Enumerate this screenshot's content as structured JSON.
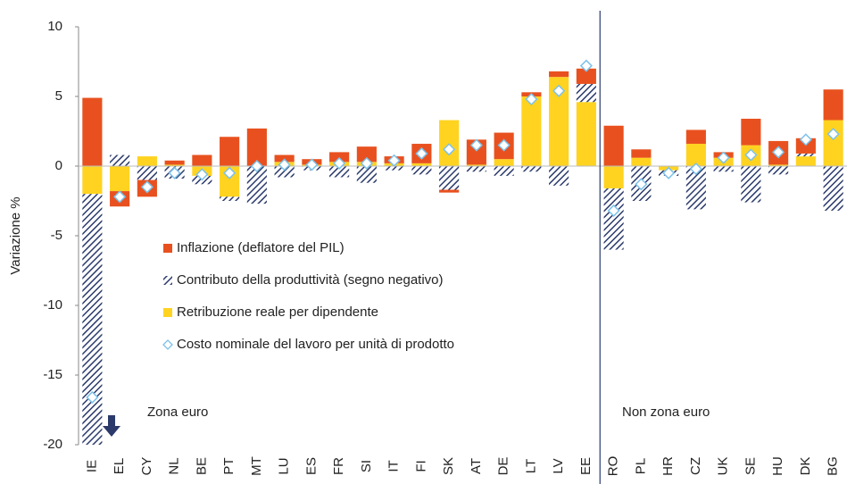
{
  "chart_data": {
    "type": "bar",
    "stacked": true,
    "y_label": "Variazione %",
    "categories": [
      "IE",
      "EL",
      "CY",
      "NL",
      "BE",
      "PT",
      "MT",
      "LU",
      "ES",
      "FR",
      "SI",
      "IT",
      "FI",
      "SK",
      "AT",
      "DE",
      "LT",
      "LV",
      "EE",
      "RO",
      "PL",
      "HR",
      "CZ",
      "UK",
      "SE",
      "HU",
      "DK",
      "BG"
    ],
    "series": [
      {
        "name": "Inflazione (deflatore del PIL)",
        "color": "#e8511f",
        "kind": "bar",
        "values": [
          4.9,
          -1.1,
          -1.2,
          0.3,
          0.8,
          2.1,
          2.7,
          0.5,
          0.4,
          0.7,
          1.1,
          0.5,
          1.4,
          -0.2,
          1.8,
          1.9,
          0.3,
          0.4,
          1.1,
          2.9,
          0.6,
          0,
          1.0,
          0.4,
          1.9,
          1.7,
          1.1,
          2.2
        ]
      },
      {
        "name": "Contributo della produttività (segno negativo)",
        "color": "#2b3a6b",
        "kind": "hatched-bar",
        "values": [
          -18,
          0.8,
          -1.0,
          -0.9,
          -0.6,
          -0.3,
          -2.7,
          -0.8,
          -0.3,
          -0.8,
          -1.2,
          -0.3,
          -0.6,
          -1.7,
          -0.4,
          -0.7,
          -0.4,
          -1.4,
          1.3,
          -4.4,
          -2.5,
          -0.4,
          -3.1,
          -0.4,
          -2.6,
          -0.6,
          0.2,
          -3.2
        ]
      },
      {
        "name": "Retribuzione reale per dipendente",
        "color": "#ffd320",
        "kind": "bar",
        "values": [
          -2.0,
          -1.8,
          0.7,
          0.1,
          -0.7,
          -2.2,
          0,
          0.3,
          0.1,
          0.3,
          0.3,
          0.2,
          0.2,
          3.3,
          0.1,
          0.5,
          5.0,
          6.4,
          4.6,
          -1.6,
          0.6,
          -0.3,
          1.6,
          0.6,
          1.5,
          0.1,
          0.7,
          3.3
        ]
      },
      {
        "name": "Costo nominale del lavoro per unità di prodotto",
        "color": "#7cc1ea",
        "kind": "diamond",
        "values": [
          -16.6,
          -2.2,
          -1.5,
          -0.5,
          -0.6,
          -0.5,
          0.0,
          0.1,
          0.1,
          0.2,
          0.2,
          0.4,
          0.9,
          1.2,
          1.5,
          1.5,
          4.8,
          5.4,
          7.2,
          -3.2,
          -1.3,
          -0.5,
          -0.2,
          0.6,
          0.8,
          1.0,
          1.9,
          2.3
        ]
      }
    ],
    "stack_order": [
      2,
      1,
      0
    ],
    "ylim": [
      -20,
      10
    ],
    "yticks": [
      -20,
      -15,
      -10,
      -5,
      0,
      5,
      10
    ],
    "legend": "center-left",
    "annotations": [
      "Zona euro",
      "Non zona euro"
    ]
  }
}
